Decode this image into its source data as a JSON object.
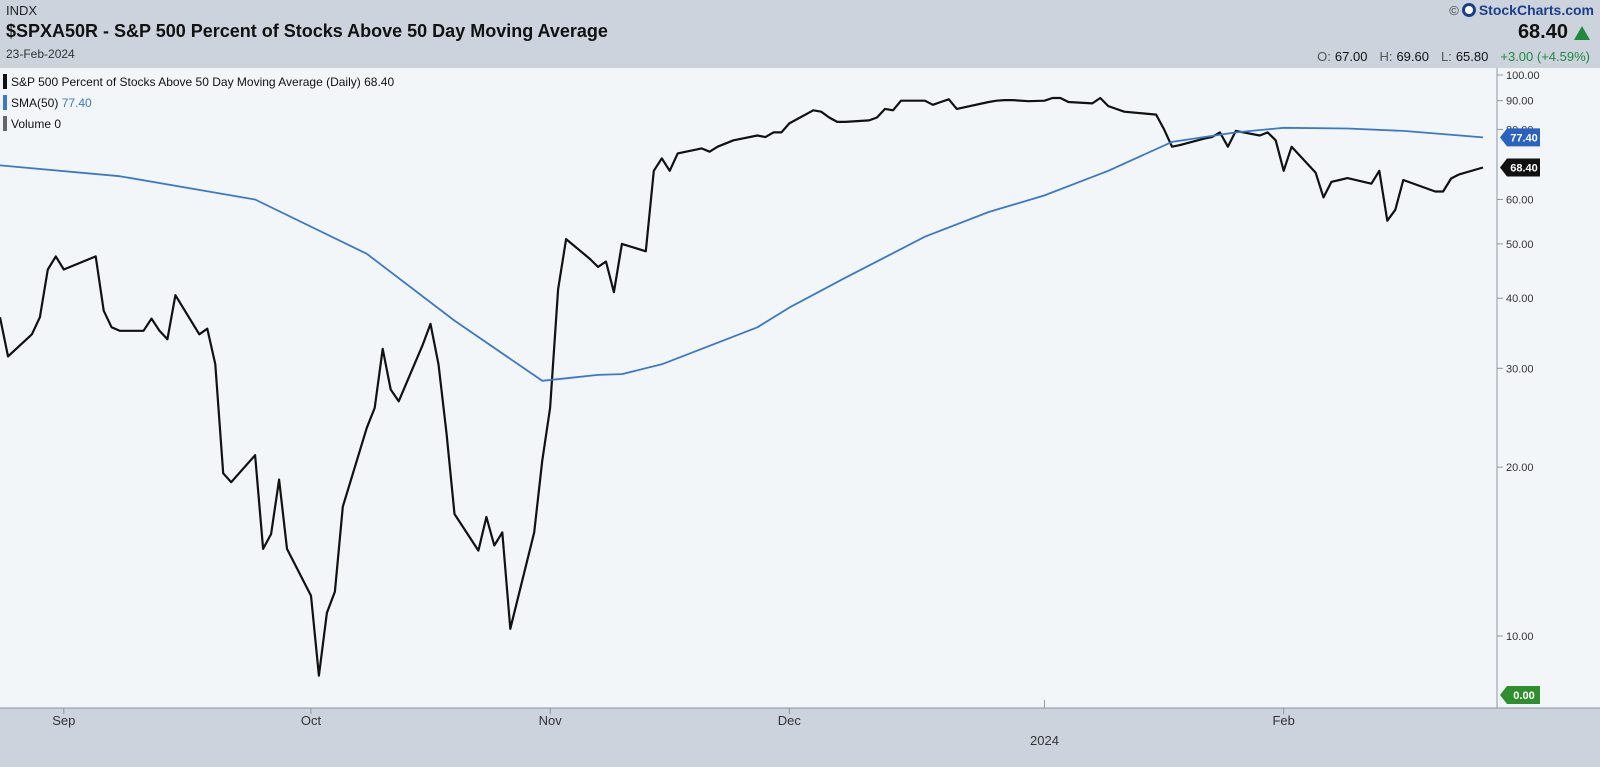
{
  "header": {
    "exchange": "INDX",
    "title": "$SPXA50R - S&P 500 Percent of Stocks Above 50 Day Moving Average",
    "date": "23-Feb-2024",
    "brand": "StockCharts.com",
    "last": "68.40",
    "open_label": "O:",
    "open": "67.00",
    "high_label": "H:",
    "high": "69.60",
    "low_label": "L:",
    "low": "65.80",
    "change": "+3.00 (+4.59%)"
  },
  "colors": {
    "price": "#111111",
    "sma": "#3a78cc",
    "volume": "#666666",
    "up": "#1f8a3c",
    "chart_bg": "#f3f6f9",
    "page_bg": "#ccd3dd"
  },
  "chart_data": {
    "type": "line",
    "scale": "log",
    "ylim": [
      8,
      105
    ],
    "y_ticks": [
      {
        "value": 100,
        "label": "100.00"
      },
      {
        "value": 90,
        "label": "90.00"
      },
      {
        "value": 80,
        "label": "80.00"
      },
      {
        "value": 60,
        "label": "60.00"
      },
      {
        "value": 50,
        "label": "50.00"
      },
      {
        "value": 40,
        "label": "40.00"
      },
      {
        "value": 30,
        "label": "30.00"
      },
      {
        "value": 20,
        "label": "20.00"
      },
      {
        "value": 10,
        "label": "10.00"
      }
    ],
    "x_ticks": [
      {
        "label": "Sep",
        "date": "2023-09-01"
      },
      {
        "label": "Oct",
        "date": "2023-10-02"
      },
      {
        "label": "Nov",
        "date": "2023-11-01"
      },
      {
        "label": "Dec",
        "date": "2023-12-01"
      },
      {
        "label": "Feb",
        "date": "2024-02-01"
      }
    ],
    "year_marker": {
      "label": "2024",
      "date": "2024-01-02"
    },
    "legend": [
      {
        "label": "S&P 500 Percent of Stocks Above 50 Day Moving Average (Daily)",
        "value": "68.40",
        "color": "#111111"
      },
      {
        "label": "SMA(50)",
        "value": "77.40",
        "color": "#3a78cc"
      },
      {
        "label": "Volume",
        "value": "0",
        "color": "#666666"
      }
    ],
    "value_tags": [
      {
        "value": 77.4,
        "label": "77.40",
        "color": "#2a62c0"
      },
      {
        "value": 68.4,
        "label": "68.40",
        "color": "#111111"
      },
      {
        "label": "0.00",
        "color": "#2f8f2f"
      }
    ],
    "series": [
      {
        "name": "S&P 500 Percent of Stocks Above 50 Day Moving Average (Daily)",
        "points": [
          [
            "2023-08-24",
            37
          ],
          [
            "2023-08-25",
            31.5
          ],
          [
            "2023-08-28",
            34.5
          ],
          [
            "2023-08-29",
            37
          ],
          [
            "2023-08-30",
            45
          ],
          [
            "2023-08-31",
            47.5
          ],
          [
            "2023-09-01",
            45
          ],
          [
            "2023-09-05",
            47.5
          ],
          [
            "2023-09-06",
            38
          ],
          [
            "2023-09-07",
            35.5
          ],
          [
            "2023-09-08",
            35
          ],
          [
            "2023-09-11",
            35
          ],
          [
            "2023-09-12",
            36.8
          ],
          [
            "2023-09-13",
            35
          ],
          [
            "2023-09-14",
            33.8
          ],
          [
            "2023-09-15",
            40.5
          ],
          [
            "2023-09-18",
            34.5
          ],
          [
            "2023-09-19",
            35.3
          ],
          [
            "2023-09-20",
            30.5
          ],
          [
            "2023-09-21",
            19.5
          ],
          [
            "2023-09-22",
            18.8
          ],
          [
            "2023-09-25",
            21
          ],
          [
            "2023-09-26",
            14.3
          ],
          [
            "2023-09-27",
            15.2
          ],
          [
            "2023-09-28",
            19
          ],
          [
            "2023-09-29",
            14.3
          ],
          [
            "2023-10-02",
            11.8
          ],
          [
            "2023-10-03",
            8.5
          ],
          [
            "2023-10-04",
            11
          ],
          [
            "2023-10-05",
            12
          ],
          [
            "2023-10-06",
            17
          ],
          [
            "2023-10-09",
            23.5
          ],
          [
            "2023-10-10",
            25.5
          ],
          [
            "2023-10-11",
            32.5
          ],
          [
            "2023-10-12",
            27.5
          ],
          [
            "2023-10-13",
            26.2
          ],
          [
            "2023-10-16",
            33
          ],
          [
            "2023-10-17",
            36
          ],
          [
            "2023-10-18",
            30.5
          ],
          [
            "2023-10-19",
            23
          ],
          [
            "2023-10-20",
            16.5
          ],
          [
            "2023-10-23",
            14.2
          ],
          [
            "2023-10-24",
            16.3
          ],
          [
            "2023-10-25",
            14.5
          ],
          [
            "2023-10-26",
            15.3
          ],
          [
            "2023-10-27",
            10.3
          ],
          [
            "2023-10-30",
            15.3
          ],
          [
            "2023-10-31",
            20.5
          ],
          [
            "2023-11-01",
            25.5
          ],
          [
            "2023-11-02",
            41.5
          ],
          [
            "2023-11-03",
            51
          ],
          [
            "2023-11-06",
            47
          ],
          [
            "2023-11-07",
            45.5
          ],
          [
            "2023-11-08",
            46.5
          ],
          [
            "2023-11-09",
            41
          ],
          [
            "2023-11-10",
            50
          ],
          [
            "2023-11-13",
            48.5
          ],
          [
            "2023-11-14",
            67.5
          ],
          [
            "2023-11-15",
            71
          ],
          [
            "2023-11-16",
            67.5
          ],
          [
            "2023-11-17",
            72.5
          ],
          [
            "2023-11-20",
            74
          ],
          [
            "2023-11-21",
            73
          ],
          [
            "2023-11-22",
            74.5
          ],
          [
            "2023-11-24",
            76.5
          ],
          [
            "2023-11-27",
            78
          ],
          [
            "2023-11-28",
            77.5
          ],
          [
            "2023-11-29",
            79
          ],
          [
            "2023-11-30",
            79
          ],
          [
            "2023-12-01",
            82
          ],
          [
            "2023-12-04",
            86.5
          ],
          [
            "2023-12-05",
            86
          ],
          [
            "2023-12-06",
            84
          ],
          [
            "2023-12-07",
            82.5
          ],
          [
            "2023-12-08",
            82.5
          ],
          [
            "2023-12-11",
            83
          ],
          [
            "2023-12-12",
            84
          ],
          [
            "2023-12-13",
            87
          ],
          [
            "2023-12-14",
            86.5
          ],
          [
            "2023-12-15",
            90
          ],
          [
            "2023-12-18",
            90
          ],
          [
            "2023-12-19",
            88.5
          ],
          [
            "2023-12-20",
            89.5
          ],
          [
            "2023-12-21",
            90.5
          ],
          [
            "2023-12-22",
            87
          ],
          [
            "2023-12-26",
            89.5
          ],
          [
            "2023-12-27",
            90
          ],
          [
            "2023-12-28",
            90.2
          ],
          [
            "2023-12-29",
            90.2
          ],
          [
            "2023-12-31",
            89.8
          ],
          [
            "2024-01-02",
            90
          ],
          [
            "2024-01-03",
            91
          ],
          [
            "2024-01-04",
            91
          ],
          [
            "2024-01-05",
            89.5
          ],
          [
            "2024-01-08",
            89
          ],
          [
            "2024-01-09",
            91
          ],
          [
            "2024-01-10",
            88
          ],
          [
            "2024-01-11",
            87
          ],
          [
            "2024-01-12",
            86
          ],
          [
            "2024-01-16",
            85
          ],
          [
            "2024-01-17",
            80
          ],
          [
            "2024-01-18",
            74.5
          ],
          [
            "2024-01-19",
            75
          ],
          [
            "2024-01-22",
            77
          ],
          [
            "2024-01-23",
            77.5
          ],
          [
            "2024-01-24",
            79
          ],
          [
            "2024-01-25",
            74.5
          ],
          [
            "2024-01-26",
            79.5
          ],
          [
            "2024-01-29",
            78
          ],
          [
            "2024-01-30",
            79
          ],
          [
            "2024-01-31",
            76.5
          ],
          [
            "2024-02-01",
            67.5
          ],
          [
            "2024-02-02",
            74.5
          ],
          [
            "2024-02-05",
            67
          ],
          [
            "2024-02-06",
            60.5
          ],
          [
            "2024-02-07",
            64.5
          ],
          [
            "2024-02-08",
            65
          ],
          [
            "2024-02-09",
            65.5
          ],
          [
            "2024-02-12",
            64
          ],
          [
            "2024-02-13",
            67.5
          ],
          [
            "2024-02-14",
            55
          ],
          [
            "2024-02-15",
            57.5
          ],
          [
            "2024-02-16",
            65
          ],
          [
            "2024-02-20",
            62
          ],
          [
            "2024-02-21",
            62
          ],
          [
            "2024-02-22",
            65.4
          ],
          [
            "2024-02-23",
            66.5
          ],
          [
            "2024-02-26",
            68.4
          ]
        ]
      },
      {
        "name": "SMA(50)",
        "points": [
          [
            "2023-08-24",
            69
          ],
          [
            "2023-09-08",
            66
          ],
          [
            "2023-09-25",
            60
          ],
          [
            "2023-10-09",
            48
          ],
          [
            "2023-10-20",
            36.5
          ],
          [
            "2023-10-31",
            28.5
          ],
          [
            "2023-11-03",
            28.8
          ],
          [
            "2023-11-07",
            29.2
          ],
          [
            "2023-11-10",
            29.3
          ],
          [
            "2023-11-15",
            30.5
          ],
          [
            "2023-11-27",
            35.5
          ],
          [
            "2023-12-01",
            38.5
          ],
          [
            "2023-12-08",
            43.5
          ],
          [
            "2023-12-18",
            51.5
          ],
          [
            "2023-12-26",
            57
          ],
          [
            "2024-01-02",
            61
          ],
          [
            "2024-01-10",
            67.5
          ],
          [
            "2024-01-18",
            76
          ],
          [
            "2024-01-26",
            79
          ],
          [
            "2024-02-01",
            80.5
          ],
          [
            "2024-02-09",
            80.3
          ],
          [
            "2024-02-16",
            79.5
          ],
          [
            "2024-02-26",
            77.4
          ]
        ]
      }
    ]
  }
}
